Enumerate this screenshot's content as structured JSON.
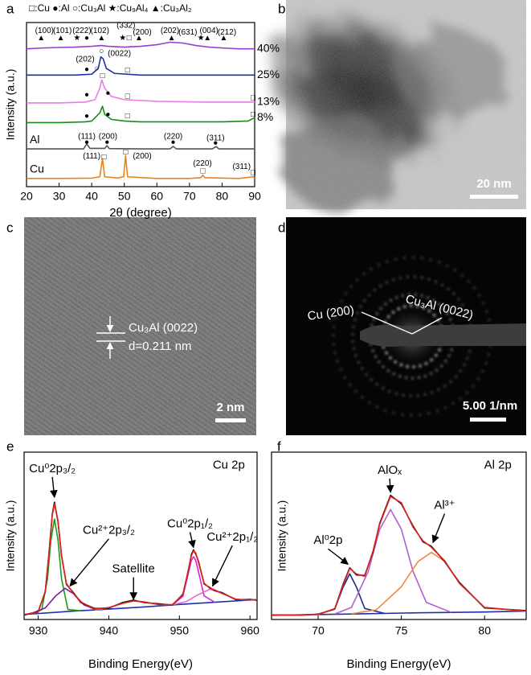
{
  "chart_data": [
    {
      "type": "line",
      "panel": "a",
      "legend_text": "□:Cu ●:Al ○:Cu₃Al ★:Cu₉Al₄ ▲:Cu₃Al₂",
      "xlabel": "2θ (degree)",
      "ylabel": "Intensity (a.u.)",
      "xlim": [
        20,
        90
      ],
      "xticks": [
        20,
        30,
        40,
        50,
        60,
        70,
        80,
        90
      ],
      "ylim": [
        0,
        100
      ],
      "series": [
        {
          "name": "Cu",
          "color": "#e8821c",
          "x": [
            20,
            30,
            40,
            42.5,
            43.3,
            44,
            48,
            49.8,
            50.4,
            51,
            60,
            70,
            73.5,
            74.1,
            74.7,
            85,
            89.5,
            90
          ],
          "values": [
            5,
            5,
            5.2,
            6,
            17,
            6,
            5.3,
            6,
            19,
            6,
            5,
            5,
            5.5,
            7,
            5.5,
            5,
            6,
            5
          ]
        },
        {
          "name": "Al",
          "color": "#555555",
          "x": [
            20,
            30,
            37.5,
            38.5,
            39.5,
            44,
            44.7,
            45.4,
            55,
            64,
            65,
            66,
            77,
            78.2,
            79,
            90
          ],
          "values": [
            23,
            23,
            23,
            26,
            23.3,
            23.3,
            25,
            23.2,
            23,
            23,
            24.5,
            23,
            23,
            24.5,
            23,
            23
          ]
        },
        {
          "name": "8%",
          "color": "#1a8a1a",
          "x": [
            20,
            30,
            38,
            40,
            42.5,
            43.3,
            44,
            46,
            50,
            55,
            65,
            80,
            88,
            90
          ],
          "values": [
            39,
            39,
            39.5,
            40,
            45,
            49,
            44,
            41,
            40,
            39.5,
            39.5,
            39.5,
            40,
            42
          ]
        },
        {
          "name": "13%",
          "color": "#ea7ce6",
          "x": [
            20,
            30,
            38,
            41,
            42.5,
            43.1,
            44,
            46,
            50,
            60,
            75,
            90
          ],
          "values": [
            51,
            51,
            51.5,
            53,
            60,
            65,
            60,
            55,
            53,
            52,
            51.5,
            51.5
          ]
        },
        {
          "name": "25%",
          "color": "#1f2ea8",
          "x": [
            20,
            35,
            40,
            42,
            42.8,
            43.5,
            44.5,
            47,
            55,
            70,
            90
          ],
          "values": [
            68,
            68,
            68.5,
            72,
            79,
            78,
            72,
            69,
            68,
            68,
            68
          ]
        },
        {
          "name": "40%",
          "color": "#9b3bd6",
          "x": [
            20,
            25,
            30,
            35,
            40,
            43,
            45,
            50,
            55,
            60,
            64,
            68,
            72,
            76,
            80,
            85,
            90
          ],
          "values": [
            84,
            84.5,
            84.8,
            85,
            85.5,
            86,
            85.5,
            85,
            85.5,
            86.5,
            88,
            87.5,
            86,
            85,
            84.5,
            84,
            84
          ]
        }
      ],
      "annotations": [
        {
          "text": "(100)",
          "x": 25.5,
          "y": 95
        },
        {
          "text": "(101)",
          "x": 31,
          "y": 95
        },
        {
          "text": "(222)",
          "x": 37,
          "y": 95
        },
        {
          "text": "(102)",
          "x": 42.5,
          "y": 95
        },
        {
          "text": "(332)",
          "x": 50.5,
          "y": 98
        },
        {
          "text": "(200)",
          "x": 55.5,
          "y": 94
        },
        {
          "text": "(202)",
          "x": 64,
          "y": 95
        },
        {
          "text": "(631)",
          "x": 69.5,
          "y": 94
        },
        {
          "text": "(004)",
          "x": 76,
          "y": 95
        },
        {
          "text": "(212)",
          "x": 81.5,
          "y": 94
        },
        {
          "text": "▲",
          "x": 24.5,
          "y": 90.5
        },
        {
          "text": "▲",
          "x": 30.5,
          "y": 90.5
        },
        {
          "text": "★",
          "x": 35.5,
          "y": 90.5
        },
        {
          "text": "●",
          "x": 38.5,
          "y": 90.5
        },
        {
          "text": "▲",
          "x": 43,
          "y": 90.5
        },
        {
          "text": "★",
          "x": 49.5,
          "y": 90.5
        },
        {
          "text": "□",
          "x": 51.5,
          "y": 90.5
        },
        {
          "text": "▲",
          "x": 54.5,
          "y": 90.5
        },
        {
          "text": "▲",
          "x": 64.5,
          "y": 90.5
        },
        {
          "text": "★",
          "x": 73.5,
          "y": 90.5
        },
        {
          "text": "▲",
          "x": 75.5,
          "y": 90.5
        },
        {
          "text": "▲",
          "x": 80.5,
          "y": 90.5
        },
        {
          "text": "(202)",
          "x": 38,
          "y": 77.5
        },
        {
          "text": "(0022)",
          "x": 48.5,
          "y": 81
        },
        {
          "text": "●",
          "x": 38.5,
          "y": 71.5
        },
        {
          "text": "○",
          "x": 41.5,
          "y": 72
        },
        {
          "text": "○",
          "x": 43,
          "y": 82.5
        },
        {
          "text": "□",
          "x": 51,
          "y": 71
        },
        {
          "text": "●",
          "x": 38.5,
          "y": 56
        },
        {
          "text": "□",
          "x": 43.3,
          "y": 67.5
        },
        {
          "text": "●",
          "x": 45,
          "y": 57
        },
        {
          "text": "□",
          "x": 51,
          "y": 55
        },
        {
          "text": "□",
          "x": 89.5,
          "y": 54
        },
        {
          "text": "●",
          "x": 38.5,
          "y": 43
        },
        {
          "text": "●",
          "x": 45,
          "y": 44
        },
        {
          "text": "□",
          "x": 51,
          "y": 43
        },
        {
          "text": "□",
          "x": 89.5,
          "y": 44
        },
        {
          "text": "(111)",
          "x": 38.5,
          "y": 30.5
        },
        {
          "text": "(200)",
          "x": 45,
          "y": 30.5
        },
        {
          "text": "(220)",
          "x": 65,
          "y": 30.5
        },
        {
          "text": "(311)",
          "x": 78,
          "y": 29.5
        },
        {
          "text": "●",
          "x": 38.5,
          "y": 27
        },
        {
          "text": "●",
          "x": 44.7,
          "y": 27
        },
        {
          "text": "●",
          "x": 65,
          "y": 27
        },
        {
          "text": "●",
          "x": 78,
          "y": 26.5
        },
        {
          "text": "(111)",
          "x": 40,
          "y": 18.5
        },
        {
          "text": "(200)",
          "x": 55.5,
          "y": 18.5
        },
        {
          "text": "(220)",
          "x": 74,
          "y": 14
        },
        {
          "text": "(311)",
          "x": 86,
          "y": 12
        },
        {
          "text": "□",
          "x": 43.8,
          "y": 18
        },
        {
          "text": "□",
          "x": 50.4,
          "y": 21
        },
        {
          "text": "□",
          "x": 74.1,
          "y": 9.5
        },
        {
          "text": "□",
          "x": 89.5,
          "y": 8.5
        }
      ]
    },
    {
      "type": "line",
      "panel": "e",
      "xlabel": "Binding Energy(eV)",
      "ylabel": "Intensity (a.u.)",
      "xlim": [
        928,
        961
      ],
      "xticks": [
        930,
        940,
        950,
        960
      ],
      "ylim": [
        0,
        100
      ],
      "series": [
        {
          "color": "#1d2fb0",
          "x": [
            928,
            935,
            940,
            945,
            950,
            955,
            961
          ],
          "values": [
            3,
            5,
            6.2,
            7.5,
            9,
            10.3,
            11.9
          ]
        },
        {
          "color": "#1a9a1a",
          "x": [
            929,
            930.5,
            931.3,
            931.8,
            932.3,
            932.8,
            933.3,
            934.2,
            936
          ],
          "values": [
            3.3,
            5.8,
            24,
            47.5,
            60,
            47.6,
            24.3,
            6.0,
            5.2
          ]
        },
        {
          "color": "#7a1f9a",
          "x": [
            929,
            931,
            932.5,
            933.8,
            935,
            936.5,
            938,
            940
          ],
          "values": [
            3.5,
            6.9,
            14.2,
            18.6,
            15.4,
            8.7,
            6.2,
            6.2
          ]
        },
        {
          "color": "#f08a24",
          "x": [
            938,
            940,
            942,
            943.5,
            945,
            947,
            949
          ],
          "values": [
            5.8,
            7.1,
            9.7,
            11.1,
            10.5,
            9.0,
            8.7
          ]
        },
        {
          "color": "#e020d0",
          "x": [
            949,
            950.5,
            951.3,
            951.7,
            952,
            952.3,
            952.7,
            953.5,
            955
          ],
          "values": [
            8.7,
            13.9,
            28.4,
            35.4,
            37.5,
            35.5,
            28.6,
            14.1,
            10.3
          ]
        },
        {
          "color": "#e46ad4",
          "x": [
            949,
            951,
            952.5,
            954.3,
            956,
            958,
            960
          ],
          "values": [
            8.8,
            10.7,
            14.5,
            18.1,
            15.7,
            12.1,
            11.6
          ]
        },
        {
          "color": "#111111",
          "x": [
            928,
            930,
            931,
            931.5,
            932,
            932.3,
            932.8,
            933.3,
            934,
            935,
            936,
            938,
            940,
            942,
            943.5,
            945,
            947,
            949,
            950.5,
            951.3,
            951.7,
            952,
            952.3,
            952.7,
            953.5,
            954.3,
            955,
            956,
            958,
            960,
            961
          ],
          "values": [
            2.6,
            4.8,
            16.5,
            38.6,
            63.2,
            70.1,
            58.4,
            38.3,
            20.9,
            16.0,
            10.2,
            6.6,
            6.8,
            10.2,
            11.6,
            10.1,
            9.4,
            8.6,
            15.2,
            29.8,
            38.9,
            41.6,
            39.2,
            34.8,
            21.2,
            19.1,
            17.3,
            16.1,
            11.8,
            12.0,
            11.5
          ]
        },
        {
          "color": "#e0201b",
          "x": [
            928,
            930,
            931,
            931.5,
            932,
            932.3,
            932.8,
            933.3,
            934,
            935,
            936,
            938,
            940,
            942,
            943.5,
            945,
            947,
            949,
            950.5,
            951.3,
            951.7,
            952,
            952.3,
            952.7,
            953.5,
            954.3,
            955,
            956,
            958,
            960,
            961
          ],
          "values": [
            3.0,
            4.4,
            16.9,
            38,
            62.5,
            69.1,
            59.1,
            37.7,
            21.5,
            15.4,
            10.6,
            6.2,
            7.1,
            9.7,
            11.1,
            10.5,
            9.0,
            8.9,
            14.8,
            30.4,
            38.2,
            41,
            39.9,
            34.2,
            21.7,
            18.6,
            17.7,
            15.7,
            12.1,
            11.6,
            11.9
          ]
        }
      ],
      "annotations": [
        {
          "text": "Cu 2p",
          "x": 957,
          "y": 92
        },
        {
          "text": "Cu⁰2p₃/₂",
          "x": 932,
          "y": 90,
          "arrow_to": [
            932.3,
            73
          ]
        },
        {
          "text": "Cu²⁺2p₃/₂",
          "x": 940,
          "y": 53,
          "arrow_to": [
            934.5,
            20
          ]
        },
        {
          "text": "Satellite",
          "x": 943.5,
          "y": 30,
          "arrow_to": [
            943.5,
            12
          ]
        },
        {
          "text": "Cu⁰2p₁/₂",
          "x": 951.5,
          "y": 57,
          "arrow_to": [
            952,
            43
          ]
        },
        {
          "text": "Cu²⁺2p₁/₂",
          "x": 957.5,
          "y": 49,
          "arrow_to": [
            954.7,
            20
          ]
        }
      ]
    },
    {
      "type": "line",
      "panel": "f",
      "xlabel": "Binding Energy(eV)",
      "ylabel": "Intensity (a.u.)",
      "xlim": [
        67.2,
        82.5
      ],
      "xticks": [
        70,
        75,
        80
      ],
      "ylim": [
        0,
        100
      ],
      "series": [
        {
          "color": "#2030a0",
          "x": [
            67.2,
            72,
            76,
            80,
            82.5
          ],
          "values": [
            2.5,
            3.3,
            4.0,
            4.5,
            5.0
          ]
        },
        {
          "color": "#1d2a8a",
          "x": [
            70,
            71,
            71.5,
            71.9,
            72.3,
            72.8,
            74
          ],
          "values": [
            3.0,
            6.3,
            19.3,
            27.3,
            19.4,
            6.6,
            3.6
          ]
        },
        {
          "color": "#b060d0",
          "x": [
            71,
            72,
            73,
            73.7,
            74.35,
            75,
            75.7,
            76.5,
            78
          ],
          "values": [
            3.3,
            7.2,
            28.4,
            53.8,
            65.7,
            54,
            28.8,
            10.2,
            4.3
          ]
        },
        {
          "color": "#f08a40",
          "x": [
            72,
            73.5,
            75,
            76,
            76.8,
            77.6,
            78.5,
            80,
            82.5
          ],
          "values": [
            3.4,
            5.8,
            19.6,
            34.6,
            40.1,
            34.8,
            21.5,
            7.2,
            5.0
          ]
        },
        {
          "color": "#111111",
          "x": [
            67.2,
            69,
            70,
            71,
            71.5,
            71.9,
            72.3,
            72.8,
            73.3,
            73.7,
            74.35,
            75,
            75.7,
            76.3,
            76.8,
            77.6,
            78.5,
            80,
            82.5
          ],
          "values": [
            2.7,
            2.6,
            3.2,
            6.2,
            21.1,
            30.9,
            26.6,
            26.3,
            40.4,
            57.5,
            74.2,
            69.1,
            55.9,
            46.4,
            43.8,
            34.6,
            22.0,
            6.9,
            5.3
          ]
        },
        {
          "color": "#e0201b",
          "x": [
            67.2,
            69,
            70,
            71,
            71.5,
            71.9,
            72.3,
            72.8,
            73.3,
            73.7,
            74.35,
            75,
            75.7,
            76.3,
            76.8,
            77.6,
            78.5,
            80,
            82.5
          ],
          "values": [
            2.5,
            2.8,
            3.0,
            6.5,
            20.5,
            30.5,
            27.2,
            25.8,
            41,
            56.9,
            73.5,
            69.8,
            55.2,
            47,
            43.2,
            35.1,
            21.5,
            7.2,
            5.0
          ]
        }
      ],
      "annotations": [
        {
          "text": "Al 2p",
          "x": 80.8,
          "y": 92
        },
        {
          "text": "Al⁰2p",
          "x": 70.6,
          "y": 47,
          "arrow_to": [
            71.8,
            33
          ]
        },
        {
          "text": "AlOₓ",
          "x": 74.3,
          "y": 89,
          "arrow_to": [
            74.35,
            76
          ]
        },
        {
          "text": "Al³⁺",
          "x": 77.6,
          "y": 68,
          "arrow_to": [
            76.9,
            46
          ]
        }
      ]
    }
  ],
  "images": [
    {
      "panel": "b",
      "scale_bar": "20 nm"
    },
    {
      "panel": "c",
      "annotation": "Cu₃Al (0022)",
      "annotation_2": "d=0.211 nm",
      "scale_bar": "2 nm"
    },
    {
      "panel": "d",
      "labels": [
        "Cu (200)",
        "Cu₃Al (0022)"
      ],
      "scale_bar": "5.00 1/nm"
    }
  ]
}
